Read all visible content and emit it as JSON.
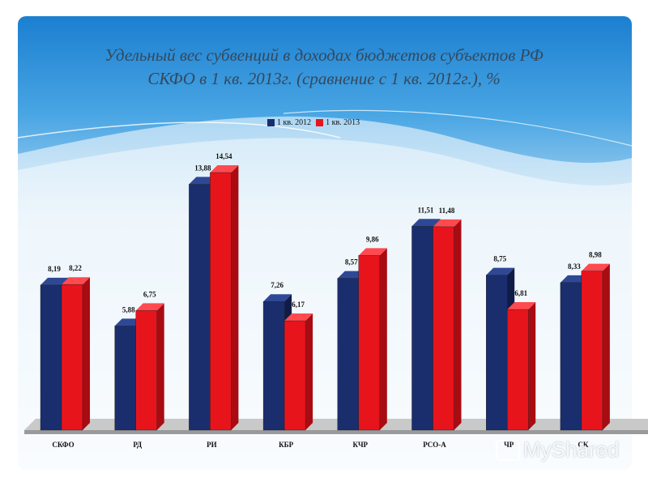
{
  "slide": {
    "title_line1": "Удельный вес субвенций в доходах бюджетов субъектов РФ",
    "title_line2": "СКФО в 1 кв. 2013г. (сравнение с 1 кв. 2012г.), %",
    "watermark_text": "MyShared"
  },
  "colors": {
    "series_2012": "#1a2e6e",
    "series_2013": "#e8141c",
    "background_top": "#1b7fd0",
    "background_bottom": "#d8ecf8"
  },
  "chart_data": {
    "type": "bar",
    "title": "Удельный вес субвенций в доходах бюджетов субъектов РФ СКФО в 1 кв. 2013г. (сравнение с 1 кв. 2012г.), %",
    "categories": [
      "СКФО",
      "РД",
      "РИ",
      "КБР",
      "КЧР",
      "РСО-А",
      "ЧР",
      "СК"
    ],
    "category_labels": [
      "СКФО",
      "РД",
      "РИ",
      "КБР",
      "КЧР",
      "РСО-А",
      "ЧР",
      "СК"
    ],
    "series": [
      {
        "name": "1 кв. 2012",
        "values": [
          8.19,
          5.88,
          13.88,
          7.26,
          8.57,
          11.51,
          8.75,
          8.33
        ],
        "labels": [
          "8,19",
          "5,88",
          "13,88",
          "7,26",
          "8,57",
          "11,51",
          "8,75",
          "8,33"
        ]
      },
      {
        "name": "1 кв. 2013",
        "values": [
          8.22,
          6.75,
          14.54,
          6.17,
          9.86,
          11.48,
          6.81,
          8.98
        ],
        "labels": [
          "8,22",
          "6,75",
          "14,54",
          "6,17",
          "9,86",
          "11,48",
          "6,81",
          "8,98"
        ]
      }
    ],
    "ylim": [
      0,
      16
    ],
    "grid": false,
    "legend_position": "top-center",
    "style": "3d-clustered"
  }
}
